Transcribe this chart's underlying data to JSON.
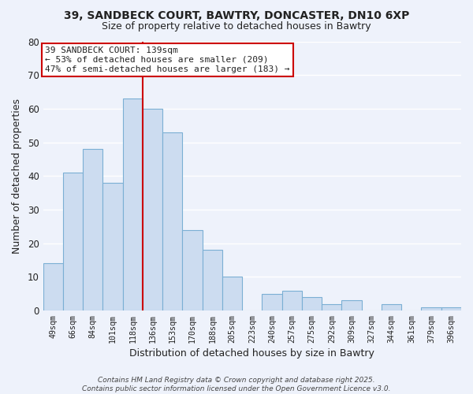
{
  "title_line1": "39, SANDBECK COURT, BAWTRY, DONCASTER, DN10 6XP",
  "title_line2": "Size of property relative to detached houses in Bawtry",
  "xlabel": "Distribution of detached houses by size in Bawtry",
  "ylabel": "Number of detached properties",
  "bar_labels": [
    "49sqm",
    "66sqm",
    "84sqm",
    "101sqm",
    "118sqm",
    "136sqm",
    "153sqm",
    "170sqm",
    "188sqm",
    "205sqm",
    "223sqm",
    "240sqm",
    "257sqm",
    "275sqm",
    "292sqm",
    "309sqm",
    "327sqm",
    "344sqm",
    "361sqm",
    "379sqm",
    "396sqm"
  ],
  "bar_values": [
    14,
    41,
    48,
    38,
    63,
    60,
    53,
    24,
    18,
    10,
    0,
    5,
    6,
    4,
    2,
    3,
    0,
    2,
    0,
    1,
    1
  ],
  "bar_color": "#ccdcf0",
  "bar_edge_color": "#7bafd4",
  "vline_color": "#cc0000",
  "annotation_text": "39 SANDBECK COURT: 139sqm\n← 53% of detached houses are smaller (209)\n47% of semi-detached houses are larger (183) →",
  "annotation_box_color": "#ffffff",
  "annotation_box_edge": "#cc0000",
  "ylim": [
    0,
    80
  ],
  "yticks": [
    0,
    10,
    20,
    30,
    40,
    50,
    60,
    70,
    80
  ],
  "background_color": "#eef2fb",
  "grid_color": "#ffffff",
  "footnote": "Contains HM Land Registry data © Crown copyright and database right 2025.\nContains public sector information licensed under the Open Government Licence v3.0."
}
